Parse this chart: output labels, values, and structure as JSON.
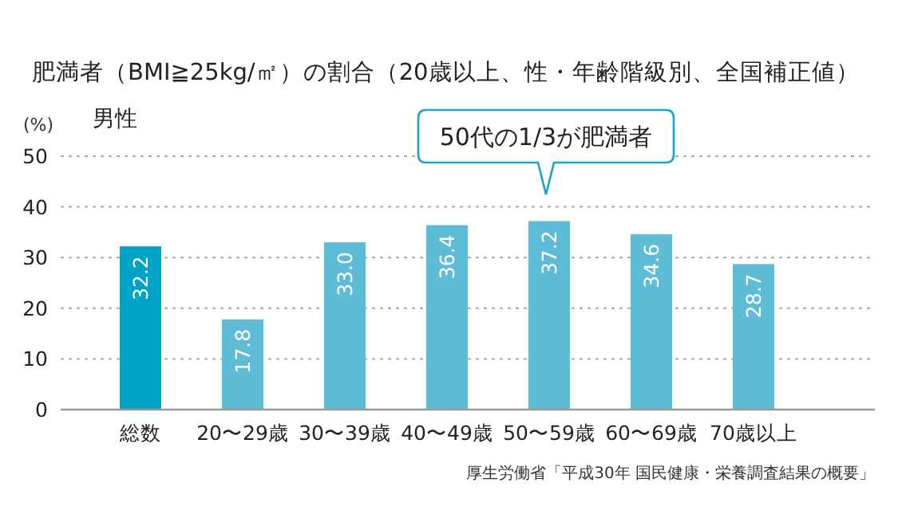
{
  "chart_data": {
    "type": "bar",
    "title": "肥満者（BMI≧25kg/㎡）の割合（20歳以上、性・年齢階級別、全国補正値）",
    "subtitle": "男性",
    "ylabel": "(%)",
    "categories": [
      "総数",
      "20〜29歳",
      "30〜39歳",
      "40〜49歳",
      "50〜59歳",
      "60〜69歳",
      "70歳以上"
    ],
    "values": [
      32.2,
      17.8,
      33.0,
      36.4,
      37.2,
      34.6,
      28.7
    ],
    "value_labels": [
      "32.2",
      "17.8",
      "33.0",
      "36.4",
      "37.2",
      "34.6",
      "28.7"
    ],
    "colors": [
      "#00a3c8",
      "#5fbcd6",
      "#5fbcd6",
      "#5fbcd6",
      "#5fbcd6",
      "#5fbcd6",
      "#5fbcd6"
    ],
    "ylim": [
      0,
      50
    ],
    "yticks": [
      0,
      10,
      20,
      30,
      40,
      50
    ],
    "grid": "y",
    "annotations": [
      "50代の1/3が肥満者",
      "厚生労働省「平成30年 国民健康・栄養調査結果の概要」"
    ]
  }
}
